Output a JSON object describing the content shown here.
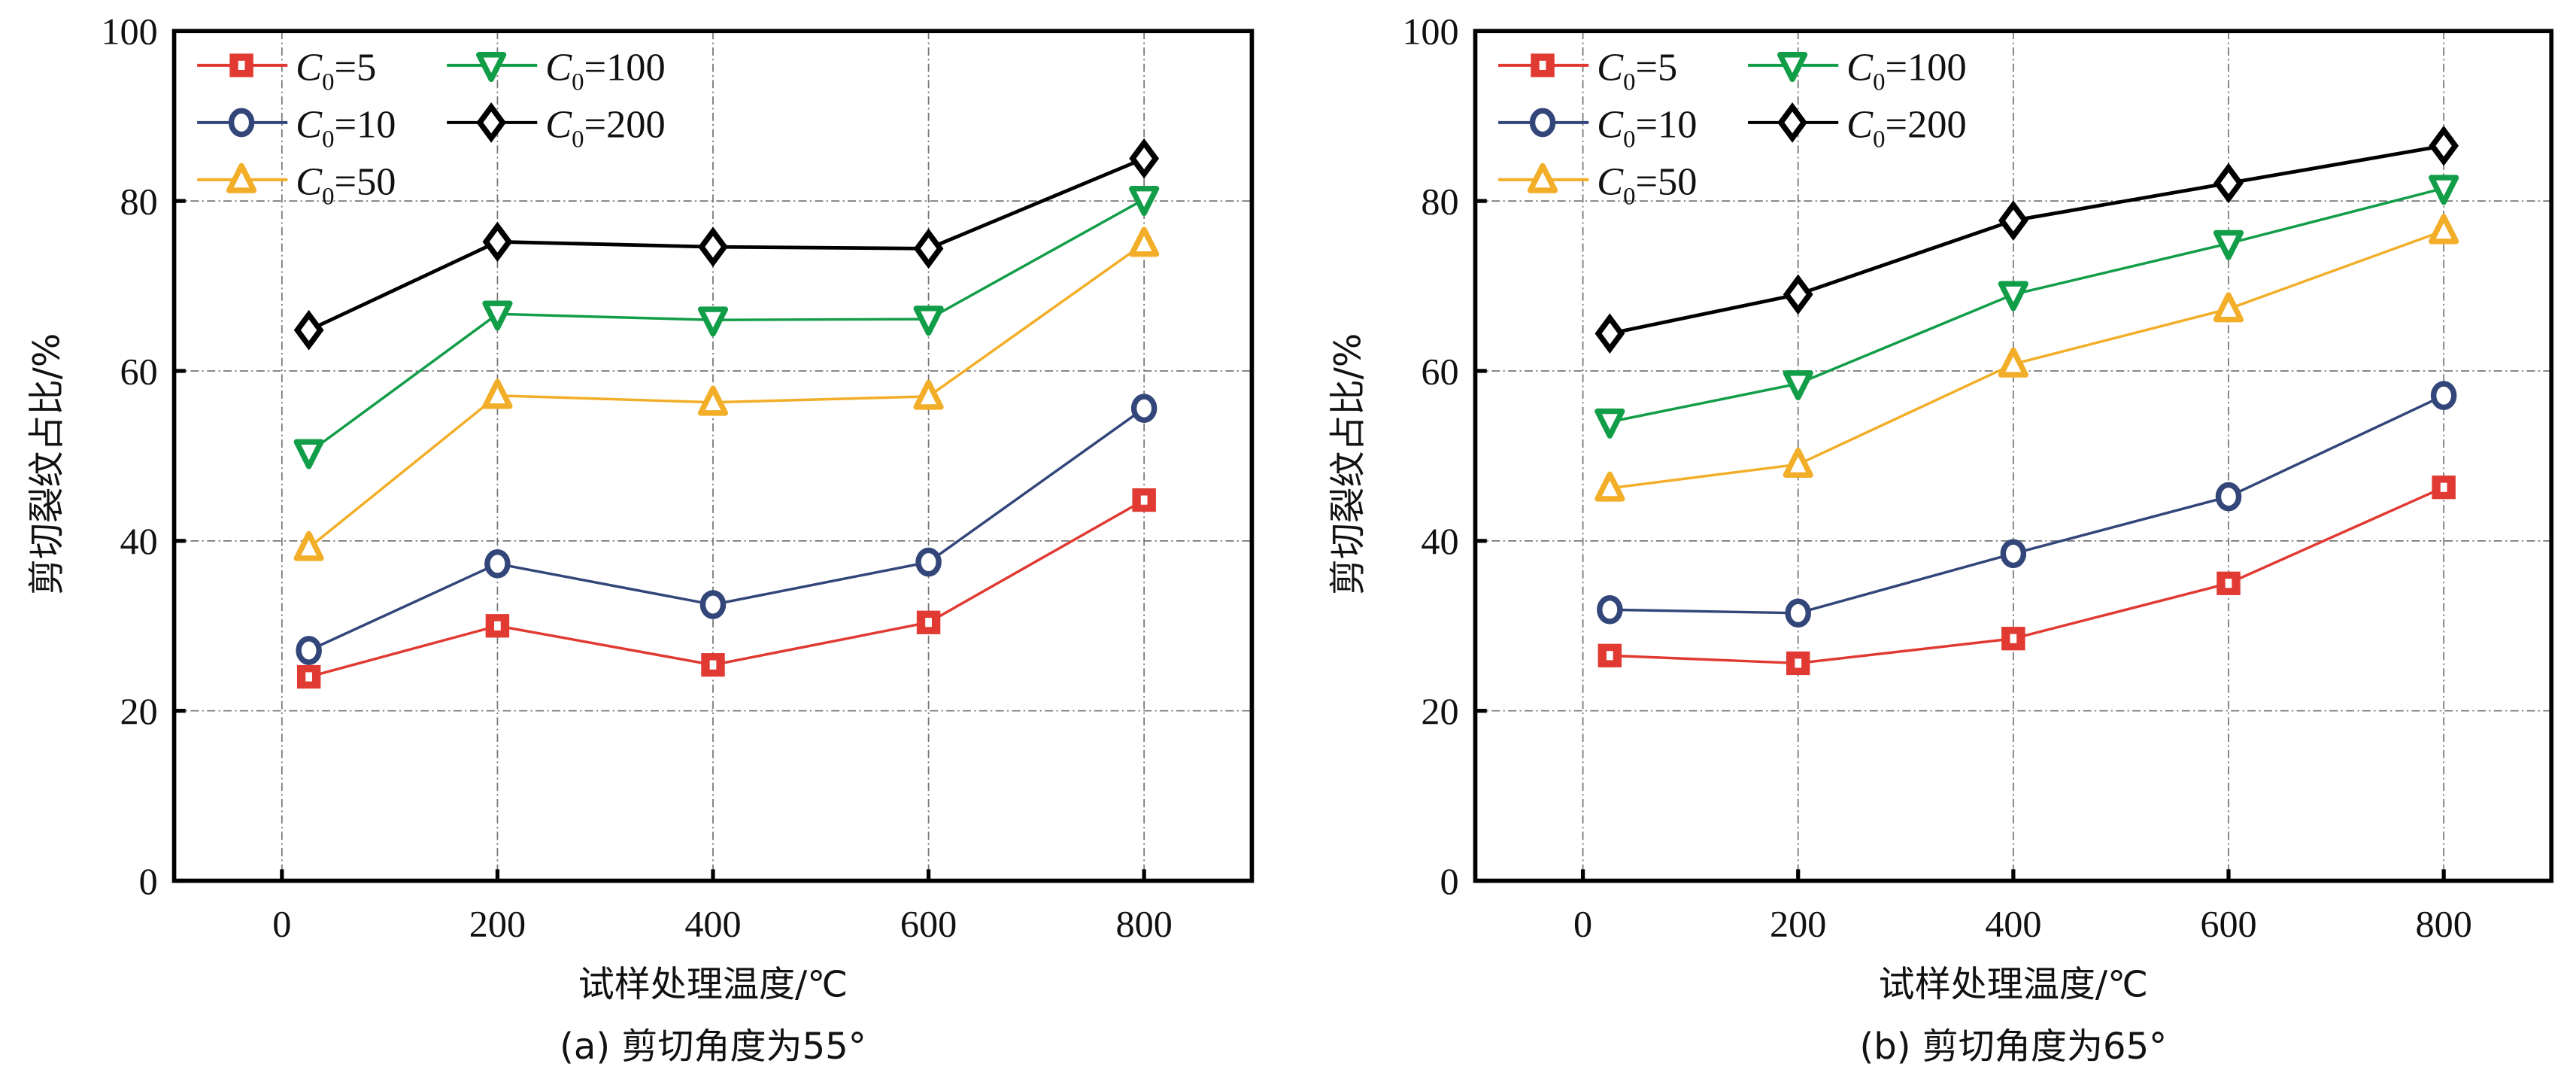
{
  "chart_data": [
    {
      "id": "a",
      "type": "line",
      "caption": "(a) 剪切角度为55°",
      "xlabel": "试样处理温度/℃",
      "ylabel": "剪切裂纹占比/%",
      "xlim": [
        -100,
        900
      ],
      "ylim": [
        0,
        100
      ],
      "xticks": [
        0,
        200,
        400,
        600,
        800
      ],
      "yticks": [
        0,
        20,
        40,
        60,
        80,
        100
      ],
      "grid": true,
      "legend_position": "top-left",
      "x": [
        25,
        200,
        400,
        600,
        800
      ],
      "series": [
        {
          "name": "C0=5",
          "label_main": "C",
          "label_sub": "0",
          "label_rest": "=5",
          "color": "#e03a32",
          "marker": "square",
          "values": [
            24.0,
            30.0,
            25.4,
            30.4,
            44.8
          ]
        },
        {
          "name": "C0=10",
          "label_main": "C",
          "label_sub": "0",
          "label_rest": "=10",
          "color": "#33467a",
          "marker": "circle",
          "values": [
            27.1,
            37.3,
            32.5,
            37.5,
            55.6
          ]
        },
        {
          "name": "C0=50",
          "label_main": "C",
          "label_sub": "0",
          "label_rest": "=50",
          "color": "#f2ae28",
          "marker": "triangle-up",
          "values": [
            39.2,
            57.1,
            56.3,
            57.0,
            75.0
          ]
        },
        {
          "name": "C0=100",
          "label_main": "C",
          "label_sub": "0",
          "label_rest": "=100",
          "color": "#129d48",
          "marker": "triangle-down",
          "values": [
            50.4,
            66.7,
            66.0,
            66.1,
            80.2
          ]
        },
        {
          "name": "C0=200",
          "label_main": "C",
          "label_sub": "0",
          "label_rest": "=200",
          "color": "#000000",
          "marker": "diamond",
          "values": [
            64.8,
            75.2,
            74.6,
            74.4,
            85.0
          ]
        }
      ]
    },
    {
      "id": "b",
      "type": "line",
      "caption": "(b) 剪切角度为65°",
      "xlabel": "试样处理温度/℃",
      "ylabel": "剪切裂纹占比/%",
      "xlim": [
        -100,
        900
      ],
      "ylim": [
        0,
        100
      ],
      "xticks": [
        0,
        200,
        400,
        600,
        800
      ],
      "yticks": [
        0,
        20,
        40,
        60,
        80,
        100
      ],
      "grid": true,
      "legend_position": "top-left",
      "x": [
        25,
        200,
        400,
        600,
        800
      ],
      "series": [
        {
          "name": "C0=5",
          "label_main": "C",
          "label_sub": "0",
          "label_rest": "=5",
          "color": "#e03a32",
          "marker": "square",
          "values": [
            26.5,
            25.6,
            28.5,
            35.0,
            46.3
          ]
        },
        {
          "name": "C0=10",
          "label_main": "C",
          "label_sub": "0",
          "label_rest": "=10",
          "color": "#33467a",
          "marker": "circle",
          "values": [
            31.9,
            31.5,
            38.5,
            45.2,
            57.1
          ]
        },
        {
          "name": "C0=50",
          "label_main": "C",
          "label_sub": "0",
          "label_rest": "=50",
          "color": "#f2ae28",
          "marker": "triangle-up",
          "values": [
            46.2,
            49.0,
            60.8,
            67.3,
            76.5
          ]
        },
        {
          "name": "C0=100",
          "label_main": "C",
          "label_sub": "0",
          "label_rest": "=100",
          "color": "#129d48",
          "marker": "triangle-down",
          "values": [
            54.0,
            58.5,
            69.0,
            75.0,
            81.5
          ]
        },
        {
          "name": "C0=200",
          "label_main": "C",
          "label_sub": "0",
          "label_rest": "=200",
          "color": "#000000",
          "marker": "diamond",
          "values": [
            64.4,
            69.0,
            77.7,
            82.1,
            86.5
          ]
        }
      ]
    }
  ]
}
